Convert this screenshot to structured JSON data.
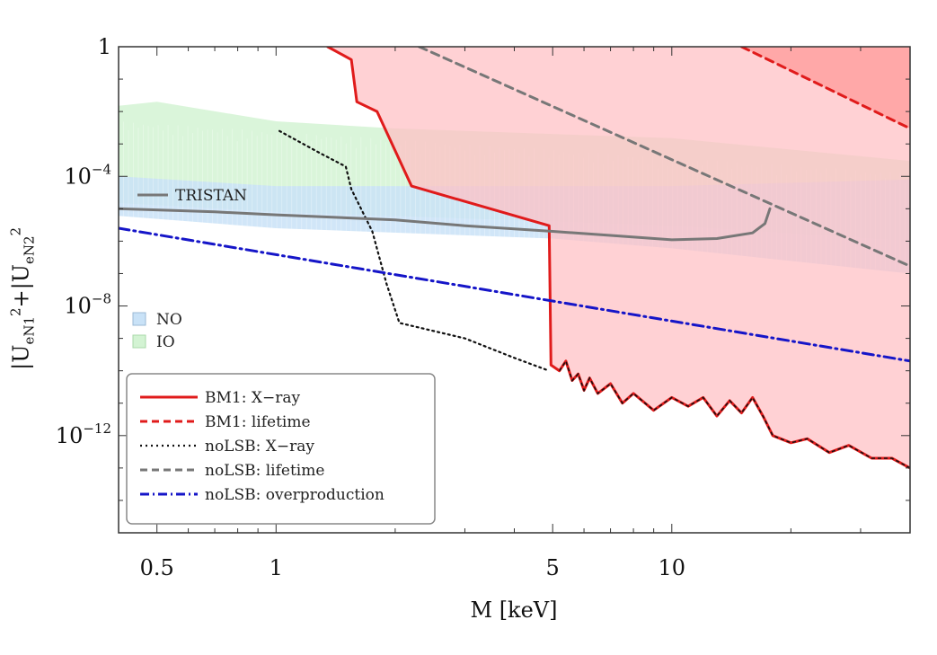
{
  "chart_data": {
    "type": "line",
    "title": "",
    "xlabel": "M [keV]",
    "ylabel": {
      "pre": "|U",
      "sub1": "eN1",
      "sup1": "2",
      "mid": "+|U",
      "sub2": "eN2",
      "sup2": "2"
    },
    "x_scale": "log",
    "y_scale": "log",
    "xlim": [
      0.4,
      40
    ],
    "ylim": [
      1e-15,
      1
    ],
    "x_ticks": [
      {
        "value": 0.5,
        "label": "0.5"
      },
      {
        "value": 1,
        "label": "1"
      },
      {
        "value": 5,
        "label": "5"
      },
      {
        "value": 10,
        "label": "10"
      }
    ],
    "y_ticks": [
      {
        "value": 1,
        "label": "1",
        "base": "",
        "exp": ""
      },
      {
        "value": 0.0001,
        "label": "",
        "base": "10",
        "exp": "−4"
      },
      {
        "value": 1e-08,
        "label": "",
        "base": "10",
        "exp": "−8"
      },
      {
        "value": 1e-12,
        "label": "",
        "base": "10",
        "exp": "−12"
      }
    ],
    "grid": false,
    "colors": {
      "bm1": "#e01b1b",
      "bm1_fill": "#ffbfc3",
      "bm1_lifetime_fill": "#ff9a9a",
      "nolsb_xray": "#111111",
      "nolsb_lifetime": "#777777",
      "overproduction": "#1515c8",
      "tristan": "#777777",
      "no_band": "#c9e2f7",
      "io_band": "#d3f3d3"
    },
    "series": [
      {
        "name": "BM1: X−ray",
        "style": "solid",
        "points": [
          [
            1.35,
            1
          ],
          [
            1.55,
            0.4
          ],
          [
            1.6,
            0.02
          ],
          [
            1.8,
            0.01
          ],
          [
            2.2,
            5e-05
          ],
          [
            4.9,
            3e-06
          ],
          [
            4.95,
            1.5e-10
          ],
          [
            5.2,
            1e-10
          ],
          [
            5.4,
            2e-10
          ],
          [
            5.6,
            5e-11
          ],
          [
            5.8,
            8e-11
          ],
          [
            6,
            2.5e-11
          ],
          [
            6.2,
            6e-11
          ],
          [
            6.5,
            2e-11
          ],
          [
            7,
            4e-11
          ],
          [
            7.5,
            1e-11
          ],
          [
            8,
            2e-11
          ],
          [
            9,
            6e-12
          ],
          [
            10,
            1.5e-11
          ],
          [
            11,
            8e-12
          ],
          [
            12,
            1.5e-11
          ],
          [
            13,
            4e-12
          ],
          [
            14,
            1.2e-11
          ],
          [
            15,
            5e-12
          ],
          [
            16,
            1.5e-11
          ],
          [
            17,
            4e-12
          ],
          [
            18,
            1e-12
          ],
          [
            20,
            6e-13
          ],
          [
            22,
            8e-13
          ],
          [
            25,
            3e-13
          ],
          [
            28,
            5e-13
          ],
          [
            32,
            2e-13
          ],
          [
            36,
            2e-13
          ],
          [
            40,
            1e-13
          ]
        ]
      },
      {
        "name": "BM1: lifetime",
        "style": "dashed",
        "points": [
          [
            15,
            1
          ],
          [
            40,
            0.003
          ]
        ]
      },
      {
        "name": "noLSB: X−ray",
        "style": "dotted",
        "points": [
          [
            1.02,
            0.0025
          ],
          [
            1.3,
            0.0005
          ],
          [
            1.5,
            0.0002
          ],
          [
            1.55,
            4e-05
          ],
          [
            1.75,
            2e-06
          ],
          [
            1.9,
            5e-08
          ],
          [
            2.05,
            3e-09
          ],
          [
            3,
            1e-09
          ],
          [
            4,
            2.5e-10
          ],
          [
            4.9,
            1e-10
          ]
        ]
      },
      {
        "name": "noLSB: lifetime",
        "style": "dashed",
        "points": [
          [
            2.3,
            1
          ],
          [
            40,
            1.7e-07
          ]
        ]
      },
      {
        "name": "noLSB: overproduction",
        "style": "dashdot",
        "points": [
          [
            0.4,
            2.5e-06
          ],
          [
            40,
            2e-10
          ]
        ]
      },
      {
        "name": "TRISTAN",
        "style": "solid",
        "points": [
          [
            0.4,
            1e-05
          ],
          [
            0.7,
            8e-06
          ],
          [
            1,
            6.5e-06
          ],
          [
            2,
            4.5e-06
          ],
          [
            3,
            3e-06
          ],
          [
            5,
            2e-06
          ],
          [
            7,
            1.5e-06
          ],
          [
            10,
            1.1e-06
          ],
          [
            13,
            1.2e-06
          ],
          [
            16,
            1.8e-06
          ],
          [
            17.2,
            3.5e-06
          ],
          [
            17.7,
            1e-05
          ]
        ]
      }
    ],
    "regions": [
      {
        "name": "NO",
        "color": "#c9e2f7"
      },
      {
        "name": "IO",
        "color": "#d3f3d3"
      }
    ],
    "band_ranges": {
      "io_upper": [
        [
          0.4,
          0.015
        ],
        [
          0.5,
          0.02
        ],
        [
          1,
          0.005
        ],
        [
          2,
          0.003
        ],
        [
          10,
          0.0015
        ],
        [
          40,
          0.0003
        ]
      ],
      "io_lower": [
        [
          0.4,
          1.5e-05
        ],
        [
          1,
          8e-06
        ],
        [
          10,
          3e-06
        ],
        [
          40,
          1e-06
        ]
      ],
      "no_upper": [
        [
          0.4,
          0.0001
        ],
        [
          1,
          5e-05
        ],
        [
          10,
          5e-05
        ],
        [
          40,
          8e-05
        ]
      ],
      "no_lower": [
        [
          0.4,
          6e-06
        ],
        [
          1,
          2.5e-06
        ],
        [
          5,
          1.2e-06
        ],
        [
          10,
          6e-07
        ],
        [
          40,
          1e-07
        ]
      ]
    },
    "legend": {
      "placement": "lower-left",
      "entries": [
        {
          "label": "BM1: X−ray",
          "style": "solid",
          "color": "#e01b1b"
        },
        {
          "label": "BM1: lifetime",
          "style": "dashed",
          "color": "#e01b1b"
        },
        {
          "label": "noLSB: X−ray",
          "style": "dotted",
          "color": "#111111"
        },
        {
          "label": "noLSB: lifetime",
          "style": "dashed",
          "color": "#777777"
        },
        {
          "label": "noLSB: overproduction",
          "style": "dashdot",
          "color": "#1515c8"
        }
      ]
    },
    "annotations": [
      {
        "text": "TRISTAN"
      }
    ]
  }
}
